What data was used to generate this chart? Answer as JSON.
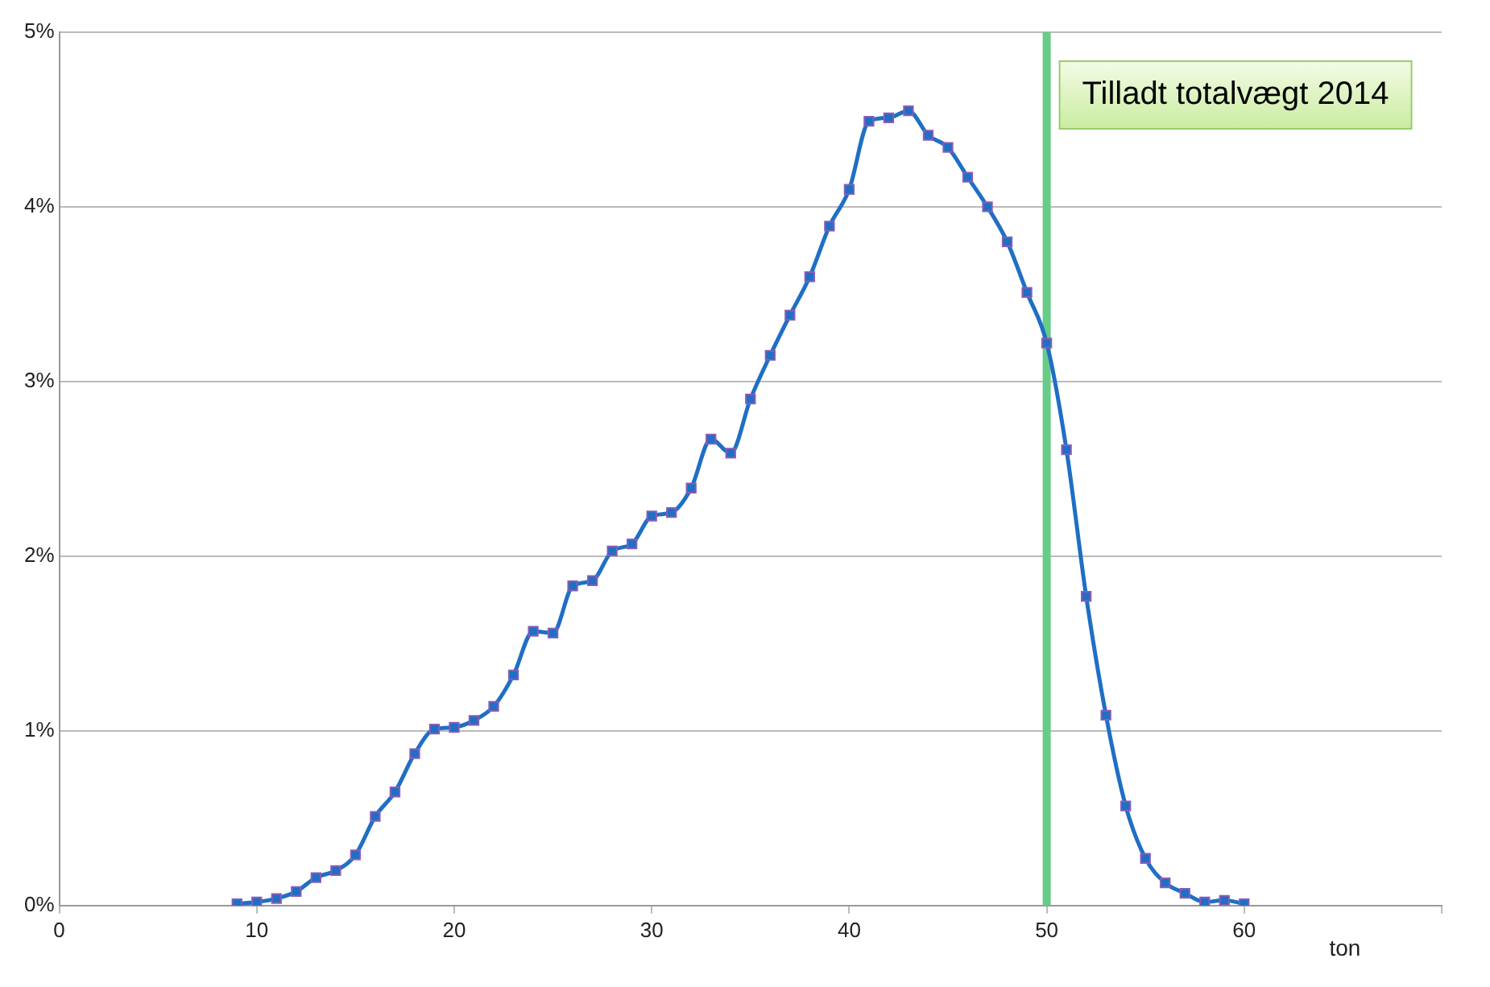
{
  "chart_data": {
    "type": "line",
    "xlabel": "ton",
    "x": [
      9,
      10,
      11,
      12,
      13,
      14,
      15,
      16,
      17,
      18,
      19,
      20,
      21,
      22,
      23,
      24,
      25,
      26,
      27,
      28,
      29,
      30,
      31,
      32,
      33,
      34,
      35,
      36,
      37,
      38,
      39,
      40,
      41,
      42,
      43,
      44,
      45,
      46,
      47,
      48,
      49,
      50,
      51,
      52,
      53,
      54,
      55,
      56,
      57,
      58,
      59,
      60
    ],
    "series": [
      {
        "color": "#1f6fc4",
        "values": [
          0.01,
          0.02,
          0.04,
          0.08,
          0.16,
          0.2,
          0.29,
          0.51,
          0.65,
          0.87,
          1.01,
          1.02,
          1.06,
          1.14,
          1.32,
          1.57,
          1.56,
          1.83,
          1.86,
          2.03,
          2.07,
          2.23,
          2.25,
          2.39,
          2.67,
          2.59,
          2.9,
          3.15,
          3.38,
          3.6,
          3.89,
          4.1,
          4.49,
          4.51,
          4.55,
          4.41,
          4.34,
          4.17,
          4.0,
          3.8,
          3.51,
          3.22,
          2.61,
          1.77,
          1.09,
          0.57,
          0.27,
          0.13,
          0.07,
          0.02,
          0.03,
          0.01
        ]
      }
    ],
    "xlim": [
      0,
      70
    ],
    "xticks": [
      0,
      10,
      20,
      30,
      40,
      50,
      60,
      {
        "value": 70,
        "label": null
      }
    ],
    "ylim": [
      0,
      5
    ],
    "yticks": [
      {
        "value": 0,
        "label": "0%"
      },
      {
        "value": 1,
        "label": "1%"
      },
      {
        "value": 2,
        "label": "2%"
      },
      {
        "value": 3,
        "label": "3%"
      },
      {
        "value": 4,
        "label": "4%"
      },
      {
        "value": 5,
        "label": "5%"
      }
    ],
    "grid": "y",
    "legend": false,
    "marker": "square",
    "line_style": "solid",
    "ref_lines": [
      {
        "axis": "x",
        "value": 50,
        "label": "Tilladt totalvægt 2014",
        "color": "#66cc88"
      }
    ]
  }
}
